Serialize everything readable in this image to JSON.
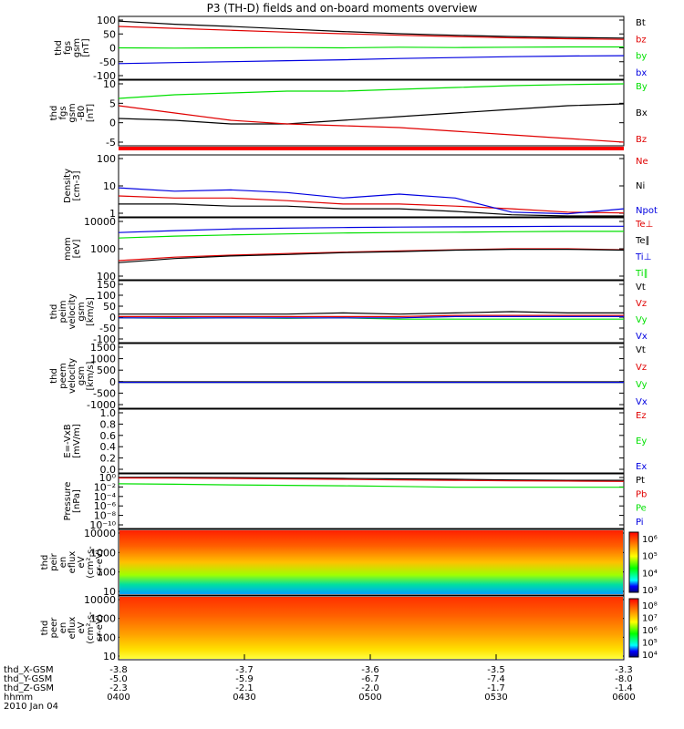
{
  "title": "P3 (TH-D) fields and on-board moments overview",
  "colors": {
    "black": "#000000",
    "red": "#e00000",
    "green": "#00e000",
    "blue": "#0000e0",
    "brightred": "#ff0000"
  },
  "chart_data": [
    {
      "type": "line",
      "ylabel": [
        "thd",
        "fgs",
        "gsm",
        "[nT]"
      ],
      "yticks": [
        "100",
        "50",
        "0",
        "-50",
        "-100"
      ],
      "ylim": [
        -100,
        100
      ],
      "series": [
        {
          "name": "Bt",
          "color": "black",
          "values": [
            85,
            75,
            68,
            60,
            52,
            45,
            40,
            36,
            33,
            31
          ]
        },
        {
          "name": "bz",
          "color": "red",
          "values": [
            68,
            62,
            56,
            50,
            45,
            40,
            36,
            32,
            29,
            27
          ]
        },
        {
          "name": "by",
          "color": "green",
          "values": [
            0,
            -1,
            0,
            1,
            0,
            2,
            1,
            2,
            3,
            3
          ]
        },
        {
          "name": "bx",
          "color": "blue",
          "values": [
            -50,
            -47,
            -44,
            -41,
            -38,
            -34,
            -31,
            -28,
            -26,
            -25
          ]
        }
      ]
    },
    {
      "type": "line",
      "ylabel": [
        "thd",
        "fgs",
        "gsm",
        "-B0",
        "[nT]"
      ],
      "yticks": [
        "10",
        "5",
        "0",
        "-5"
      ],
      "ylim": [
        -7,
        11
      ],
      "series": [
        {
          "name": "By",
          "color": "green",
          "values": [
            6,
            7,
            7.5,
            8,
            8,
            8.5,
            9,
            9.5,
            9.8,
            10
          ]
        },
        {
          "name": "Bx",
          "color": "black",
          "values": [
            0.5,
            0,
            -1,
            -1,
            0,
            1,
            2,
            3,
            4,
            4.5
          ]
        },
        {
          "name": "Bz",
          "color": "red",
          "values": [
            4,
            2,
            0,
            -1,
            -1.5,
            -2,
            -3,
            -4,
            -5,
            -6
          ]
        }
      ]
    },
    {
      "type": "line",
      "ylabel": [
        "Density",
        "[cm-3]"
      ],
      "yticks": [
        "100",
        "10",
        "1"
      ],
      "ylog": true,
      "ylim": [
        1,
        200
      ],
      "series": [
        {
          "name": "Ne",
          "color": "red",
          "values": [
            6,
            5,
            5,
            4,
            3,
            3,
            2.5,
            2,
            1.5,
            1.4
          ]
        },
        {
          "name": "Ni",
          "color": "black",
          "values": [
            3,
            3,
            2.5,
            2.5,
            2,
            2,
            1.6,
            1.2,
            1,
            1
          ]
        },
        {
          "name": "Npot",
          "color": "blue",
          "values": [
            12,
            9,
            10,
            8,
            5,
            7,
            5,
            1.5,
            1.3,
            2
          ]
        }
      ]
    },
    {
      "type": "line",
      "ylabel": [
        "mom",
        "[eV]"
      ],
      "yticks": [
        "10000",
        "1000",
        "100"
      ],
      "ylog": true,
      "ylim": [
        30,
        10000
      ],
      "series": [
        {
          "name": "Te⊥",
          "color": "red",
          "values": [
            180,
            250,
            300,
            350,
            400,
            450,
            500,
            550,
            550,
            500
          ]
        },
        {
          "name": "Te∥",
          "color": "black",
          "values": [
            150,
            220,
            280,
            320,
            380,
            420,
            480,
            520,
            520,
            480
          ]
        },
        {
          "name": "Ti⊥",
          "color": "blue",
          "values": [
            2500,
            3000,
            3500,
            3800,
            4000,
            4200,
            4300,
            4400,
            4500,
            4500
          ]
        },
        {
          "name": "Ti∥",
          "color": "green",
          "values": [
            1500,
            1800,
            2000,
            2200,
            2400,
            2500,
            2600,
            2700,
            2800,
            2800
          ]
        }
      ]
    },
    {
      "type": "line",
      "ylabel": [
        "thd",
        "peim",
        "velocity",
        "gsm",
        "[km/s]"
      ],
      "yticks": [
        "150",
        "100",
        "50",
        "0",
        "-50",
        "-100"
      ],
      "ylim": [
        -100,
        150
      ],
      "series": [
        {
          "name": "Vt",
          "color": "black",
          "values": [
            15,
            15,
            15,
            15,
            20,
            15,
            20,
            25,
            20,
            20
          ]
        },
        {
          "name": "Vz",
          "color": "red",
          "values": [
            5,
            5,
            5,
            5,
            5,
            5,
            10,
            10,
            10,
            10
          ]
        },
        {
          "name": "Vy",
          "color": "green",
          "values": [
            0,
            -2,
            0,
            -2,
            0,
            -5,
            -5,
            -5,
            -5,
            -5
          ]
        },
        {
          "name": "Vx",
          "color": "blue",
          "values": [
            0,
            0,
            0,
            0,
            0,
            0,
            5,
            5,
            5,
            5
          ]
        }
      ]
    },
    {
      "type": "line",
      "ylabel": [
        "thd",
        "peem",
        "velocity",
        "gsm",
        "[km/s]"
      ],
      "yticks": [
        "1500",
        "1000",
        "500",
        "0",
        "-500",
        "-1000"
      ],
      "ylim": [
        -1000,
        1500
      ],
      "series": [
        {
          "name": "Vt",
          "color": "black",
          "values": [
            20,
            20,
            20,
            20,
            20,
            20,
            20,
            20,
            20,
            20
          ]
        },
        {
          "name": "Vz",
          "color": "red",
          "values": [
            0,
            0,
            0,
            0,
            0,
            0,
            0,
            0,
            0,
            0
          ]
        },
        {
          "name": "Vy",
          "color": "green",
          "values": [
            0,
            0,
            0,
            0,
            0,
            0,
            0,
            0,
            0,
            0
          ]
        },
        {
          "name": "Vx",
          "color": "blue",
          "values": [
            0,
            0,
            0,
            0,
            0,
            0,
            0,
            0,
            0,
            0
          ]
        }
      ]
    },
    {
      "type": "line",
      "ylabel": [
        "E=-VxB",
        "[mV/m]"
      ],
      "yticks": [
        "1.0",
        "0.8",
        "0.6",
        "0.4",
        "0.2",
        "0.0"
      ],
      "ylim": [
        0,
        1
      ],
      "series": [
        {
          "name": "Ez",
          "color": "red",
          "values": []
        },
        {
          "name": "Ey",
          "color": "green",
          "values": []
        },
        {
          "name": "Ex",
          "color": "blue",
          "values": []
        }
      ]
    },
    {
      "type": "line",
      "ylabel": [
        "Pressure",
        "[nPa]"
      ],
      "yticks": [
        "10⁰",
        "10⁻²",
        "10⁻⁴",
        "10⁻⁶",
        "10⁻⁸",
        "10⁻¹⁰"
      ],
      "ylog": true,
      "ylim": [
        1e-10,
        10
      ],
      "series": [
        {
          "name": "Pt",
          "color": "black",
          "values": [
            2,
            2,
            1.8,
            1.5,
            1.2,
            1,
            0.8,
            0.6,
            0.5,
            0.5
          ]
        },
        {
          "name": "Pb",
          "color": "red",
          "values": [
            1.5,
            1.4,
            1.2,
            1,
            0.8,
            0.6,
            0.5,
            0.4,
            0.35,
            0.3
          ]
        },
        {
          "name": "Pe",
          "color": "green",
          "values": [
            0.1,
            0.08,
            0.06,
            0.05,
            0.04,
            0.03,
            0.02,
            0.02,
            0.02,
            0.02
          ]
        },
        {
          "name": "Pi",
          "color": "blue",
          "values": []
        }
      ]
    },
    {
      "type": "heatmap",
      "ylabel": [
        "thd",
        "peir",
        "en",
        "eflux",
        "eV",
        "(cm²-s-",
        "sr-eV)"
      ],
      "yticks": [
        "10000",
        "1000",
        "100",
        "10"
      ],
      "ylog": true,
      "colorbar": [
        "10⁶",
        "10⁵",
        "10⁴",
        "10³"
      ]
    },
    {
      "type": "heatmap",
      "ylabel": [
        "thd",
        "peer",
        "en",
        "eflux",
        "eV",
        "(cm²-s-",
        "sr-eV)"
      ],
      "yticks": [
        "10000",
        "1000",
        "100",
        "10"
      ],
      "ylog": true,
      "colorbar": [
        "10⁸",
        "10⁷",
        "10⁶",
        "10⁵",
        "10⁴"
      ]
    }
  ],
  "xaxis": {
    "rows": [
      {
        "label": "thd_X-GSM",
        "values": [
          "-3.8",
          "-3.7",
          "-3.6",
          "-3.5",
          "-3.3"
        ]
      },
      {
        "label": "thd_Y-GSM",
        "values": [
          "-5.0",
          "-5.9",
          "-6.7",
          "-7.4",
          "-8.0"
        ]
      },
      {
        "label": "thd_Z-GSM",
        "values": [
          "-2.3",
          "-2.1",
          "-2.0",
          "-1.7",
          "-1.4"
        ]
      },
      {
        "label": "hhmm",
        "values": [
          "0400",
          "0430",
          "0500",
          "0530",
          "0600"
        ]
      }
    ],
    "date": "2010 Jan 04"
  }
}
